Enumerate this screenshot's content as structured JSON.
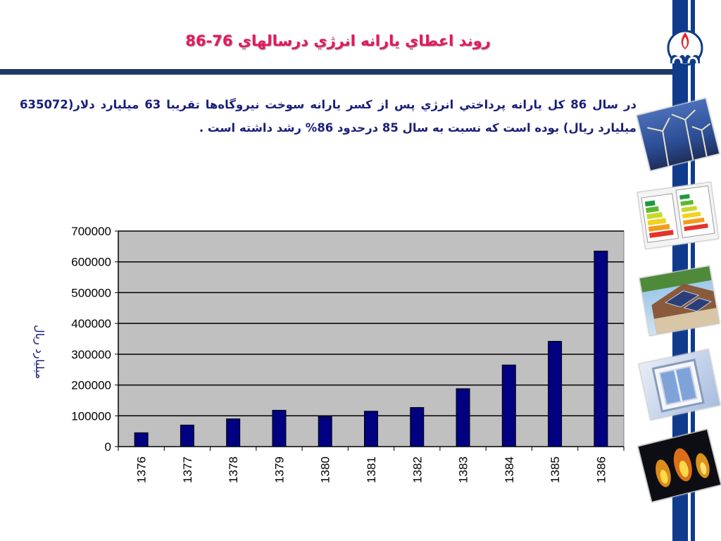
{
  "slide": {
    "title": "روند اعطاي يارانه انرژي درسالهاي 76-86",
    "body_text": "در سال 86 كل يارانه پرداختي انرژي پس از كسر يارانه سوخت نيروگاه‌ها تقريبا 63 ميليارد دلار(635072 ميليارد ريال) بوده است كه نسبت به سال 85 درحدود 86% رشد داشته است ."
  },
  "side_images": [
    {
      "icon": "wind-turbines-image"
    },
    {
      "icon": "energy-label-image"
    },
    {
      "icon": "solar-roof-image"
    },
    {
      "icon": "window-frame-image"
    },
    {
      "icon": "gas-flame-image"
    }
  ],
  "colors": {
    "title": "#e8175d",
    "body_text": "#1a1e7a",
    "bars": "#000080",
    "plot_bg": "#c0c0c0",
    "band": "#0f3b8c"
  },
  "chart_data": {
    "type": "bar",
    "categories": [
      "1376",
      "1377",
      "1378",
      "1379",
      "1380",
      "1381",
      "1382",
      "1383",
      "1384",
      "1385",
      "1386"
    ],
    "values": [
      45000,
      70000,
      90000,
      118000,
      98000,
      115000,
      127000,
      188000,
      265000,
      342000,
      635072
    ],
    "title": "",
    "xlabel": "",
    "ylabel": "ميليارد ريال",
    "ylim": [
      0,
      700000
    ],
    "yticks": [
      "0",
      "100000",
      "200000",
      "300000",
      "400000",
      "500000",
      "600000",
      "700000"
    ],
    "grid": true,
    "legend": "none"
  }
}
